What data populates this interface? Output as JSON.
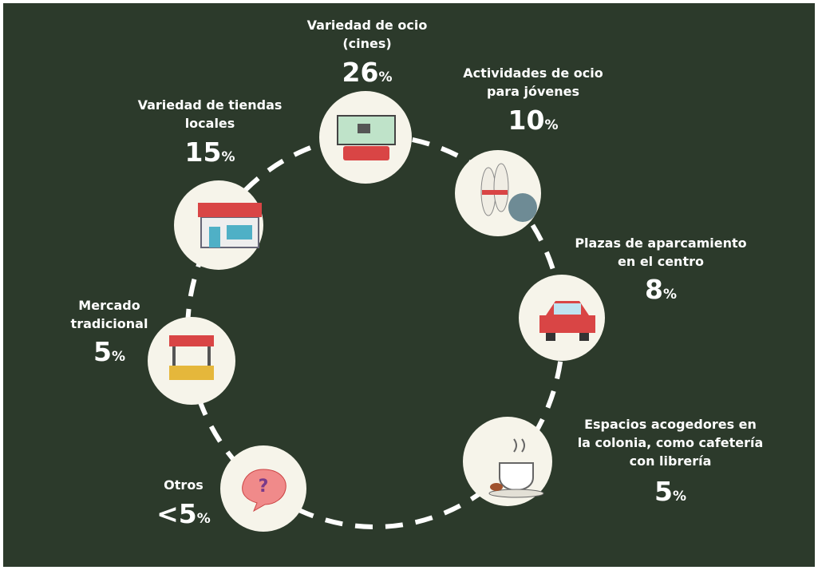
{
  "nodes": [
    {
      "label": [
        "Variedad de ocio",
        "(cines)"
      ],
      "value": "26",
      "unit": "%"
    },
    {
      "label": [
        "Actividades de ocio",
        "para jóvenes"
      ],
      "value": "10",
      "unit": "%"
    },
    {
      "label": [
        "Variedad de tiendas",
        "locales"
      ],
      "value": "15",
      "unit": "%"
    },
    {
      "label": [
        "Plazas de aparcamiento",
        "en el centro"
      ],
      "value": "8",
      "unit": "%"
    },
    {
      "label": [
        "Mercado",
        "tradicional"
      ],
      "value": "5",
      "unit": "%"
    },
    {
      "label": [
        "Espacios acogedores en",
        "la colonia, como cafetería",
        "con librería"
      ],
      "value": "5",
      "unit": "%"
    },
    {
      "label": [
        "Otros"
      ],
      "value": "<5",
      "unit": "%"
    }
  ]
}
